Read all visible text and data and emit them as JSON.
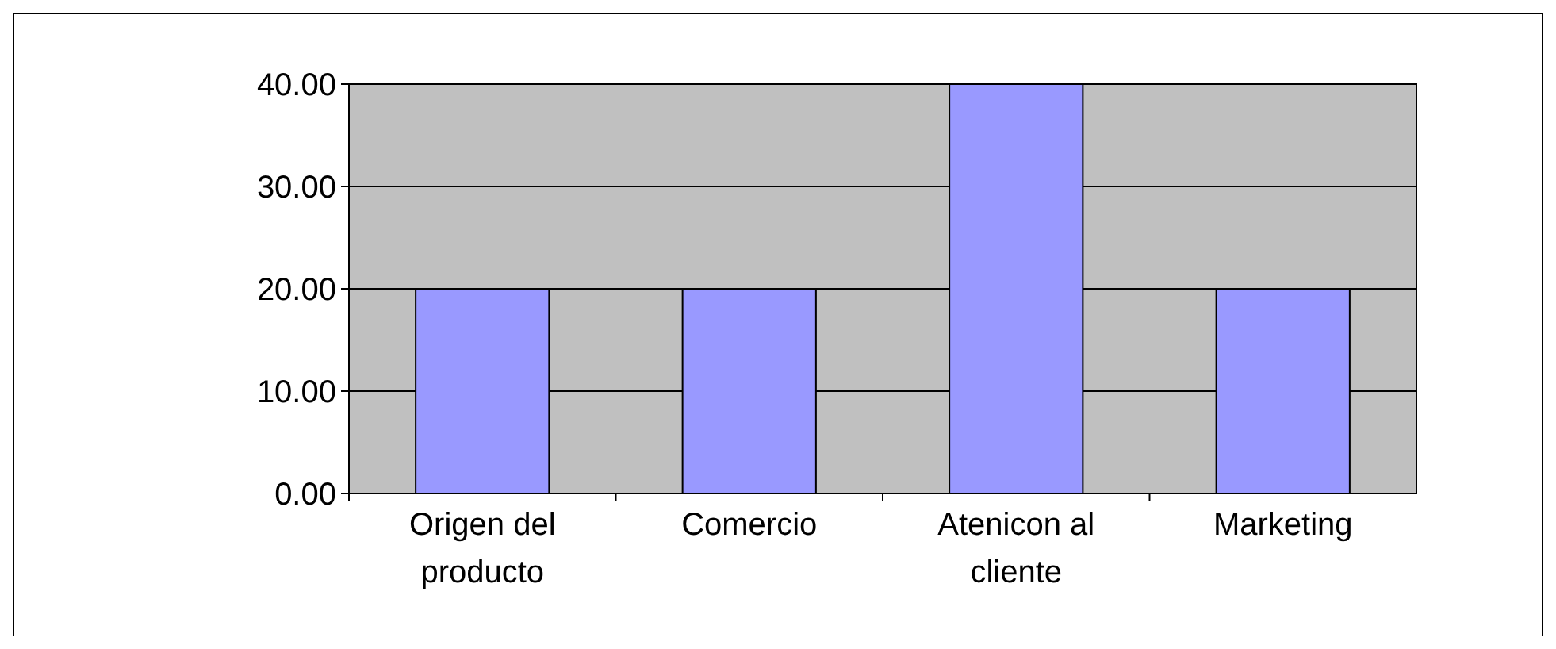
{
  "chart_data": {
    "type": "bar",
    "categories": [
      "Origen del producto",
      "Comercio",
      "Atenicon al cliente",
      "Marketing"
    ],
    "values": [
      20,
      20,
      40,
      20
    ],
    "color": "#9999ff",
    "ylim": [
      0,
      40
    ],
    "yticks": [
      {
        "value": 0,
        "label": "0.00"
      },
      {
        "value": 10,
        "label": "10.00"
      },
      {
        "value": 20,
        "label": "20.00"
      },
      {
        "value": 30,
        "label": "30.00"
      },
      {
        "value": 40,
        "label": "40.00"
      }
    ],
    "grid": "y"
  }
}
